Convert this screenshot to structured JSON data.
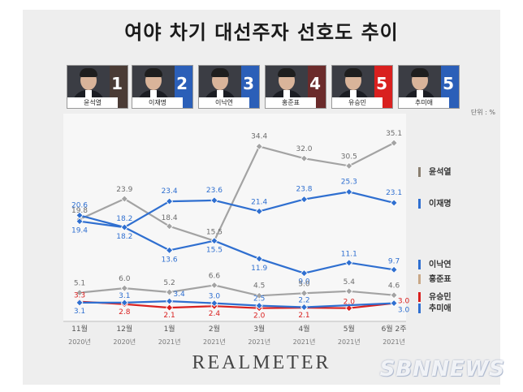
{
  "title": "여야 차기 대선주자 선호도 추이",
  "unit_label": "단위 : %",
  "candidates": [
    {
      "name": "윤석열",
      "rank": "1",
      "color": "#4a3b35"
    },
    {
      "name": "이재명",
      "rank": "2",
      "color": "#2b5fb8"
    },
    {
      "name": "이낙연",
      "rank": "3",
      "color": "#2b5fb8"
    },
    {
      "name": "홍준표",
      "rank": "4",
      "color": "#6b2b2b"
    },
    {
      "name": "유승민",
      "rank": "5",
      "color": "#d9201f"
    },
    {
      "name": "추미애",
      "rank": "5",
      "color": "#2b5fb8"
    }
  ],
  "chart_data": {
    "type": "line",
    "categories": [
      "11월 2020년",
      "12월 2020년",
      "1월 2021년",
      "2월 2021년",
      "3월 2021년",
      "4월 2021년",
      "5월 2021년",
      "6월 2주 2021년"
    ],
    "x_month_labels": [
      "11월",
      "12월",
      "1월",
      "2월",
      "3월",
      "4월",
      "5월",
      "6월 2주"
    ],
    "x_year_labels": [
      "2020년",
      "2020년",
      "2021년",
      "2021년",
      "2021년",
      "2021년",
      "2021년",
      "2021년"
    ],
    "ylim": [
      0,
      40
    ],
    "series": [
      {
        "name": "윤석열",
        "color": "#a3a3a3",
        "values": [
          19.8,
          23.9,
          18.4,
          15.5,
          34.4,
          32.0,
          30.5,
          35.1
        ]
      },
      {
        "name": "이재명",
        "color": "#2f6fd0",
        "values": [
          20.6,
          18.2,
          23.4,
          23.6,
          21.4,
          23.8,
          25.3,
          23.1
        ]
      },
      {
        "name": "이낙연",
        "color": "#2f6fd0",
        "values": [
          19.4,
          18.2,
          13.6,
          15.5,
          11.9,
          9.0,
          11.1,
          9.7
        ]
      },
      {
        "name": "홍준표",
        "color": "#a3a3a3",
        "values": [
          5.1,
          6.0,
          5.2,
          6.6,
          4.5,
          5.0,
          5.4,
          4.6
        ]
      },
      {
        "name": "유승민",
        "color": "#d9201f",
        "values": [
          3.3,
          2.8,
          2.1,
          2.4,
          2.0,
          2.1,
          2.0,
          3.0
        ]
      },
      {
        "name": "추미애",
        "color": "#2f6fd0",
        "values": [
          3.1,
          3.1,
          3.4,
          3.0,
          2.5,
          2.2,
          null,
          3.0
        ]
      }
    ],
    "legend_markers": [
      "#8a7f70",
      "#2f6fd0",
      "#2f6fd0",
      "#c9a887",
      "#d9201f",
      "#2f6fd0"
    ]
  },
  "logo": "REALMETER",
  "watermark": "SBNNEWS"
}
